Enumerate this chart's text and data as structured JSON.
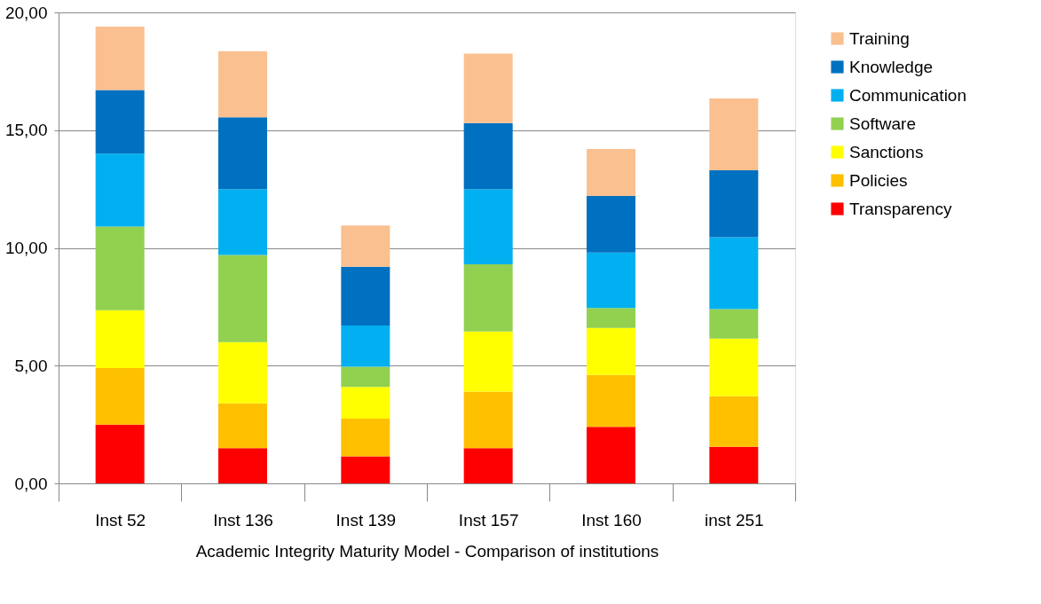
{
  "chart_data": {
    "type": "bar",
    "stacked": true,
    "xlabel": "Academic Integrity Maturity Model - Comparison of institutions",
    "categories": [
      "Inst 52",
      "Inst 136",
      "Inst 139",
      "Inst 157",
      "Inst 160",
      "inst 251"
    ],
    "ylim": [
      0,
      20
    ],
    "yticks": [
      {
        "value": 0,
        "label": "0,00"
      },
      {
        "value": 5,
        "label": "5,00"
      },
      {
        "value": 10,
        "label": "10,00"
      },
      {
        "value": 15,
        "label": "15,00"
      },
      {
        "value": 20,
        "label": "20,00"
      }
    ],
    "grid": "y",
    "legend": "right",
    "series": [
      {
        "name": "Transparency",
        "color": "#ff0000",
        "values": [
          2.5,
          1.5,
          1.15,
          1.5,
          2.4,
          1.55
        ]
      },
      {
        "name": "Policies",
        "color": "#ffc000",
        "values": [
          2.4,
          1.9,
          1.6,
          2.4,
          2.2,
          2.15
        ]
      },
      {
        "name": "Sanctions",
        "color": "#ffff00",
        "values": [
          2.45,
          2.6,
          1.35,
          2.55,
          2.0,
          2.45
        ]
      },
      {
        "name": "Software",
        "color": "#92d050",
        "values": [
          3.55,
          3.7,
          0.85,
          2.85,
          0.85,
          1.25
        ]
      },
      {
        "name": "Communication",
        "color": "#00b0f0",
        "values": [
          3.1,
          2.8,
          1.75,
          3.2,
          2.35,
          3.05
        ]
      },
      {
        "name": "Knowledge",
        "color": "#0070c0",
        "values": [
          2.7,
          3.05,
          2.5,
          2.8,
          2.4,
          2.85
        ]
      },
      {
        "name": "Training",
        "color": "#fac090",
        "values": [
          2.7,
          2.8,
          1.75,
          2.95,
          2.0,
          3.05
        ]
      }
    ]
  }
}
